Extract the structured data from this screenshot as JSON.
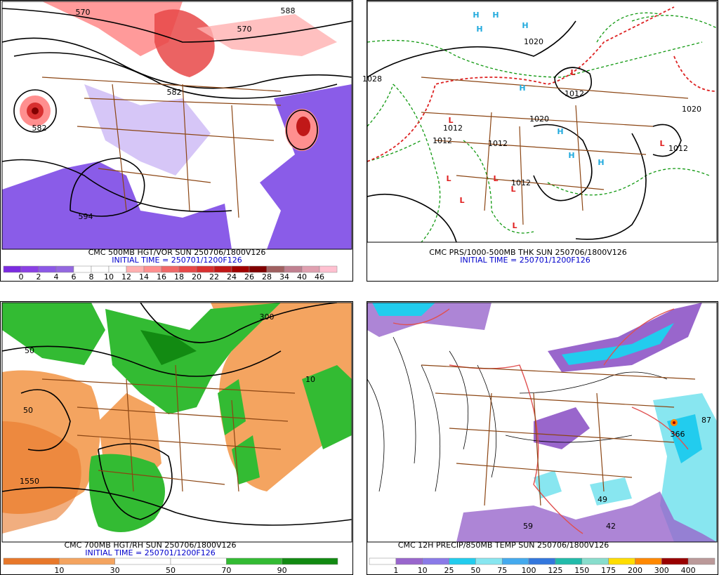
{
  "panels": [
    {
      "caption": "CMC 500MB HGT/VOR SUN 250706/1800V126",
      "initial_time": "INITIAL TIME = 250701/1200F126",
      "colorbar": {
        "colors": [
          "#7b2be0",
          "#8a40e4",
          "#8c58e6",
          "#9468e0",
          "#ffffff",
          "#ffffff",
          "#ffffff",
          "#ffb0b0",
          "#ff8f8f",
          "#f06868",
          "#e84848",
          "#d83030",
          "#c01818",
          "#a00000",
          "#800000",
          "#a06060",
          "#c08090",
          "#e0a0b0",
          "#ffc0d0"
        ],
        "labels": [
          0,
          2,
          4,
          6,
          8,
          10,
          12,
          14,
          16,
          18,
          20,
          22,
          24,
          26,
          28,
          34,
          40,
          46
        ]
      },
      "map_labels": [
        "570",
        "588",
        "570",
        "582",
        "582",
        "594"
      ]
    },
    {
      "caption": "CMC PRS/1000-500MB THK SUN 250706/1800V126",
      "initial_time": "INITIAL TIME = 250701/1200F126",
      "map_labels": [
        "H",
        "H",
        "H",
        "H",
        "H",
        "H",
        "H",
        "H",
        "L",
        "L",
        "L",
        "L",
        "L",
        "L",
        "L",
        "L",
        "1020",
        "1012",
        "1020",
        "1012",
        "1012",
        "1012",
        "1012",
        "1020",
        "1012",
        "1028"
      ]
    },
    {
      "caption": "CMC 700MB HGT/RH SUN 250706/1800V126",
      "initial_time": "INITIAL TIME = 250701/1200F126",
      "colorbar": {
        "colors": [
          "#e8782a",
          "#f4a460",
          "#ffffff",
          "#ffffff",
          "#33bb33",
          "#128a12"
        ],
        "labels": [
          10,
          30,
          50,
          70,
          90
        ]
      },
      "map_labels": [
        "300",
        "50",
        "10",
        "50",
        "1550"
      ]
    },
    {
      "caption": "CMC 12H PRECIP/850MB TEMP SUN 250706/1800V126",
      "colorbar": {
        "colors": [
          "#ffffff",
          "#9966cc",
          "#8a7ae8",
          "#22ccee",
          "#88e6f0",
          "#44aaee",
          "#3377dd",
          "#22bbaa",
          "#88ddcc",
          "#ffdd00",
          "#ff8800",
          "#990000",
          "#bb9999"
        ],
        "labels": [
          1,
          10,
          25,
          50,
          75,
          100,
          125,
          150,
          175,
          200,
          300,
          400
        ]
      },
      "map_labels": [
        "366",
        "87",
        "59",
        "42",
        "49"
      ]
    }
  ]
}
